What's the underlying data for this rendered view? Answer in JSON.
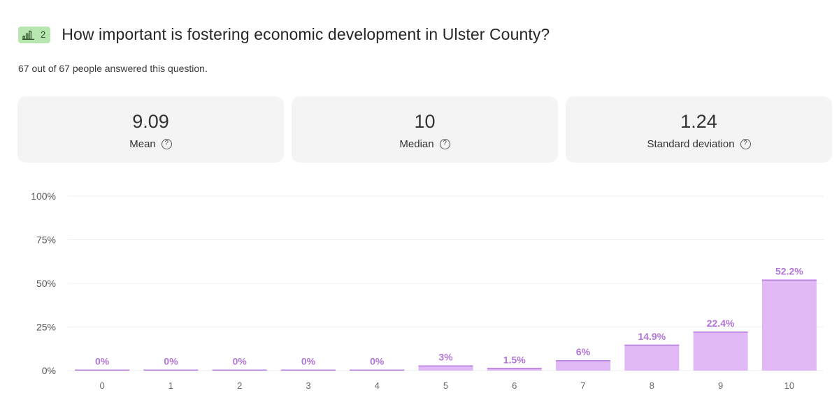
{
  "question": {
    "number": "2",
    "badge_icon": "bar-chart-icon",
    "title": "How important is fostering economic development in Ulster County?"
  },
  "answered_text": "67 out of 67 people answered this question.",
  "stats": [
    {
      "value": "9.09",
      "label": "Mean"
    },
    {
      "value": "10",
      "label": "Median"
    },
    {
      "value": "1.24",
      "label": "Standard deviation"
    }
  ],
  "help_icon": "question-circle-icon",
  "colors": {
    "bar_fill": "#dfb8f5",
    "bar_top": "#b57edb",
    "data_label": "#b276d8",
    "badge": "#b8e6b0"
  },
  "chart_data": {
    "type": "bar",
    "categories": [
      "0",
      "1",
      "2",
      "3",
      "4",
      "5",
      "6",
      "7",
      "8",
      "9",
      "10"
    ],
    "values": [
      0,
      0,
      0,
      0,
      0,
      3,
      1.5,
      6,
      14.9,
      22.4,
      52.2
    ],
    "data_labels": [
      "0%",
      "0%",
      "0%",
      "0%",
      "0%",
      "3%",
      "1.5%",
      "6%",
      "14.9%",
      "22.4%",
      "52.2%"
    ],
    "yticks": [
      "0%",
      "25%",
      "50%",
      "75%",
      "100%"
    ],
    "ylim": [
      0,
      100
    ],
    "grid": true,
    "legend": "none"
  }
}
